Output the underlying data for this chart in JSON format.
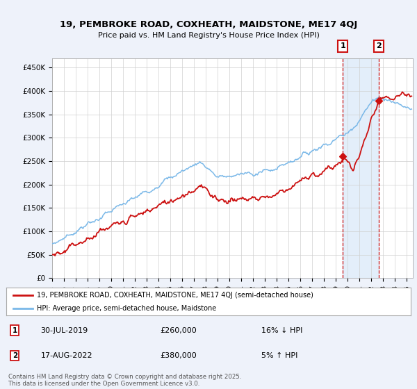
{
  "title": "19, PEMBROKE ROAD, COXHEATH, MAIDSTONE, ME17 4QJ",
  "subtitle": "Price paid vs. HM Land Registry's House Price Index (HPI)",
  "bg_color": "#eef2fa",
  "plot_bg_color": "#ffffff",
  "hpi_color": "#7ab8e8",
  "price_color": "#cc1111",
  "dashed_color": "#cc1111",
  "ylim": [
    0,
    470000
  ],
  "yticks": [
    0,
    50000,
    100000,
    150000,
    200000,
    250000,
    300000,
    350000,
    400000,
    450000
  ],
  "ytick_labels": [
    "£0",
    "£50K",
    "£100K",
    "£150K",
    "£200K",
    "£250K",
    "£300K",
    "£350K",
    "£400K",
    "£450K"
  ],
  "xlim_start": 1995.0,
  "xlim_end": 2025.5,
  "sale1_x": 2019.58,
  "sale1_y": 260000,
  "sale2_x": 2022.63,
  "sale2_y": 380000,
  "sale1_label": "1",
  "sale2_label": "2",
  "annotation1": "30-JUL-2019",
  "annotation1_price": "£260,000",
  "annotation1_hpi": "16% ↓ HPI",
  "annotation2": "17-AUG-2022",
  "annotation2_price": "£380,000",
  "annotation2_hpi": "5% ↑ HPI",
  "legend_label1": "19, PEMBROKE ROAD, COXHEATH, MAIDSTONE, ME17 4QJ (semi-detached house)",
  "legend_label2": "HPI: Average price, semi-detached house, Maidstone",
  "footnote": "Contains HM Land Registry data © Crown copyright and database right 2025.\nThis data is licensed under the Open Government Licence v3.0.",
  "highlight_color": "#d8e8f8"
}
